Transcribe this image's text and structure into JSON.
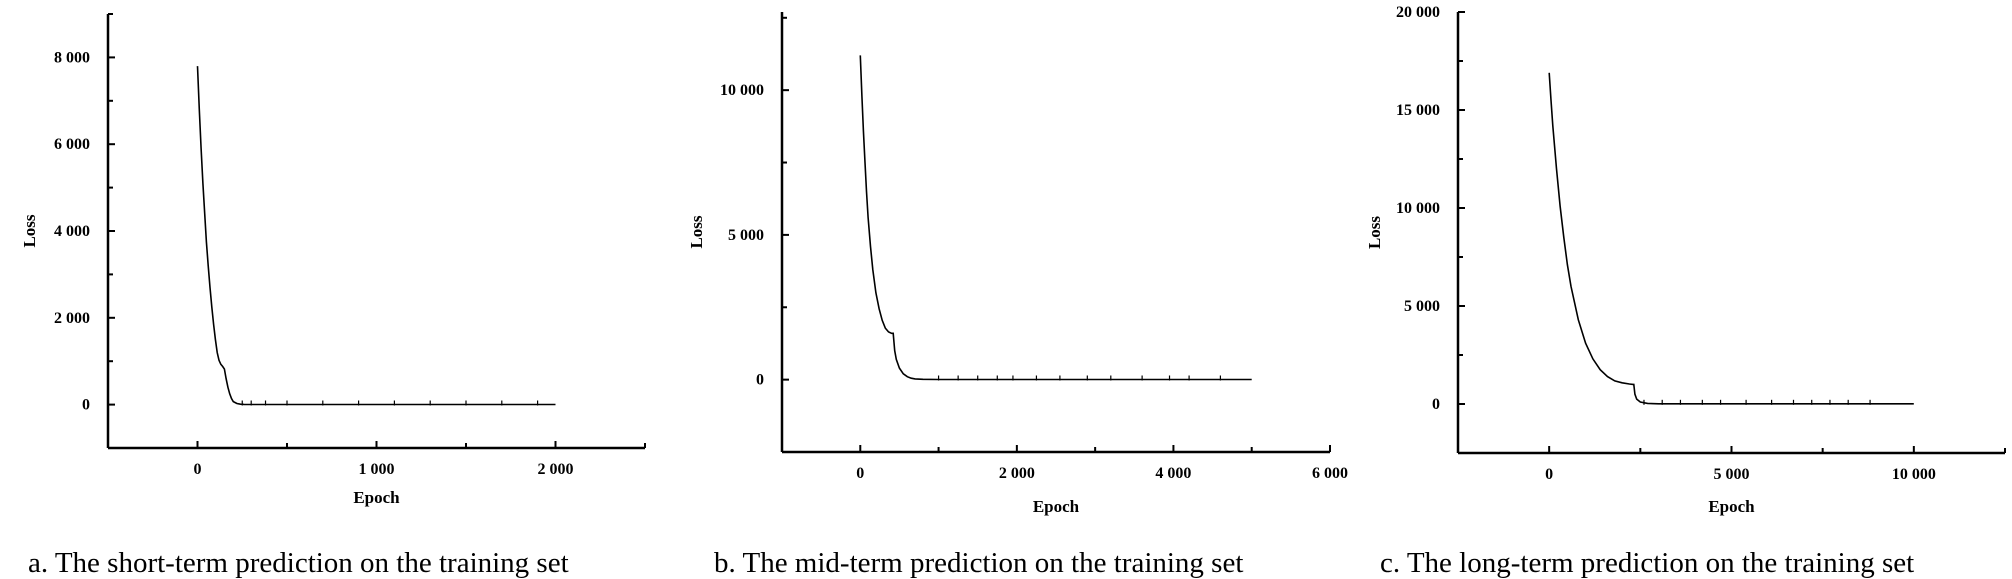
{
  "chart_data": [
    {
      "type": "line",
      "caption": "a. The short-term prediction on the training set",
      "xlabel": "Epoch",
      "ylabel": "Loss",
      "xlim": [
        -500,
        2500
      ],
      "ylim": [
        -1000,
        9000
      ],
      "xticks": [
        0,
        1000,
        2000
      ],
      "xtick_labels": [
        "0",
        "1 000",
        "2 000"
      ],
      "yticks": [
        0,
        2000,
        4000,
        6000,
        8000
      ],
      "ytick_labels": [
        "0",
        "2 000",
        "4 000",
        "6 000",
        "8 000"
      ],
      "series": [
        {
          "x": [
            0,
            10,
            20,
            30,
            40,
            50,
            60,
            70,
            80,
            90,
            100,
            110,
            120,
            130,
            140,
            150,
            160,
            170,
            180,
            190,
            200,
            220,
            240,
            260,
            280,
            300,
            400,
            600,
            800,
            1000,
            1200,
            1400,
            1600,
            1800,
            2000
          ],
          "y": [
            7800,
            6800,
            5900,
            5100,
            4400,
            3750,
            3200,
            2700,
            2250,
            1850,
            1500,
            1200,
            1020,
            930,
            880,
            820,
            600,
            400,
            250,
            140,
            70,
            25,
            10,
            5,
            3,
            2,
            2,
            2,
            2,
            2,
            2,
            2,
            2,
            2,
            2
          ]
        }
      ],
      "spikes_x": [
        250,
        300,
        380,
        500,
        700,
        900,
        1100,
        1300,
        1500,
        1700,
        1900
      ]
    },
    {
      "type": "line",
      "caption": "b. The mid-term prediction on the training set",
      "xlabel": "Epoch",
      "ylabel": "Loss",
      "xlim": [
        -1000,
        6000
      ],
      "ylim": [
        -2500,
        12700
      ],
      "xticks": [
        0,
        2000,
        4000,
        6000
      ],
      "xtick_labels": [
        "0",
        "2 000",
        "4 000",
        "6 000"
      ],
      "yticks": [
        0,
        5000,
        10000
      ],
      "ytick_labels": [
        "0",
        "5 000",
        "10 000"
      ],
      "series": [
        {
          "x": [
            0,
            20,
            40,
            60,
            80,
            100,
            130,
            160,
            200,
            240,
            280,
            320,
            360,
            400,
            420,
            440,
            460,
            500,
            550,
            600,
            650,
            700,
            800,
            1000,
            1500,
            2000,
            2500,
            3000,
            3500,
            4000,
            4500,
            5000
          ],
          "y": [
            11200,
            9800,
            8600,
            7500,
            6500,
            5600,
            4600,
            3800,
            3000,
            2450,
            2050,
            1780,
            1650,
            1600,
            1600,
            1000,
            700,
            400,
            200,
            100,
            50,
            25,
            10,
            5,
            5,
            5,
            5,
            5,
            5,
            5,
            5,
            5
          ]
        }
      ],
      "spikes_x": [
        1000,
        1250,
        1500,
        1750,
        1950,
        2250,
        2550,
        2900,
        3200,
        3600,
        3950,
        4200,
        4600
      ]
    },
    {
      "type": "line",
      "caption": "c. The long-term prediction on the training set",
      "xlabel": "Epoch",
      "ylabel": "Loss",
      "xlim": [
        -2500,
        12500
      ],
      "ylim": [
        -2500,
        20000
      ],
      "xticks": [
        0,
        5000,
        10000
      ],
      "xtick_labels": [
        "0",
        "5 000",
        "10 000"
      ],
      "yticks": [
        0,
        5000,
        10000,
        15000,
        20000
      ],
      "ytick_labels": [
        "0",
        "5 000",
        "10 000",
        "15 000",
        "20 000"
      ],
      "series": [
        {
          "x": [
            0,
            50,
            100,
            200,
            300,
            400,
            500,
            600,
            800,
            1000,
            1200,
            1400,
            1600,
            1800,
            2000,
            2200,
            2300,
            2320,
            2350,
            2400,
            2500,
            2700,
            3000,
            4000,
            5000,
            6000,
            7000,
            8000,
            9000,
            10000
          ],
          "y": [
            16900,
            15500,
            14200,
            12000,
            10100,
            8500,
            7100,
            6000,
            4300,
            3100,
            2300,
            1750,
            1400,
            1180,
            1080,
            1020,
            1000,
            1000,
            500,
            250,
            100,
            30,
            10,
            10,
            10,
            10,
            10,
            10,
            10,
            10
          ]
        }
      ],
      "spikes_x": [
        2600,
        3100,
        3600,
        4200,
        4700,
        5400,
        6100,
        6700,
        7200,
        7700,
        8200,
        8800
      ]
    }
  ]
}
